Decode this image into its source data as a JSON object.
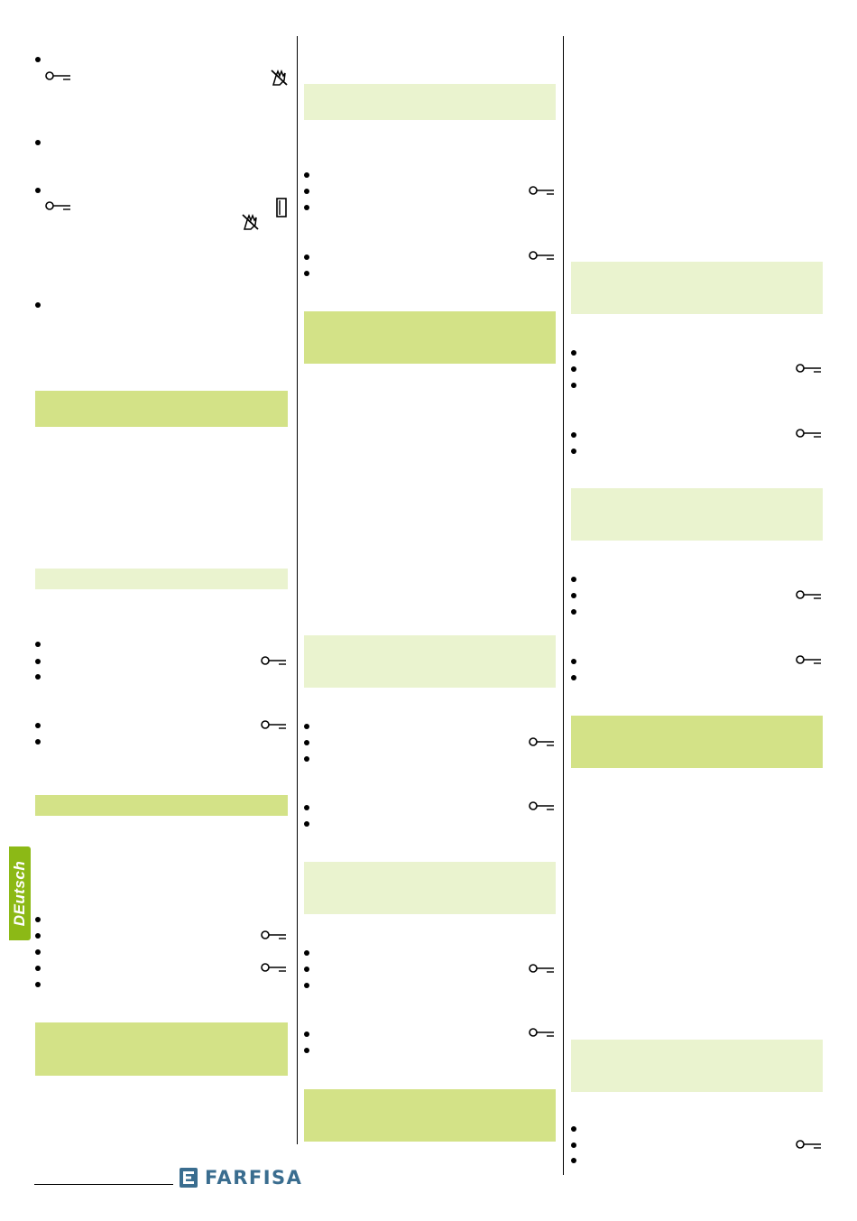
{
  "side_tab": {
    "label": "DEutsch"
  },
  "brand": {
    "name": "FARFISA"
  },
  "icons": {
    "key": "key-icon",
    "hand_muted": "hand-muted-icon",
    "door": "door-icon",
    "bullet": "bullet-dot"
  },
  "colors": {
    "band_light": "#eaf3cf",
    "band_dark": "#d3e287",
    "tab_green": "#8cb916",
    "logo_blue": "#3a6d8f"
  }
}
